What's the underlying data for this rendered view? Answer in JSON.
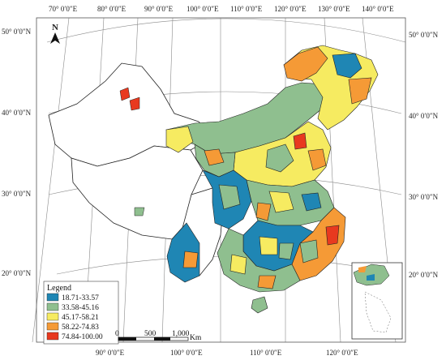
{
  "map": {
    "lon_labels_top": [
      "70° 0′0″E",
      "80° 0′0″E",
      "90° 0′0″E",
      "100° 0′0″E",
      "110° 0′0″E",
      "120° 0′0″E",
      "130° 0′0″E",
      "140° 0′0″E"
    ],
    "lon_labels_bottom": [
      "90° 0′0″E",
      "100° 0′0″E",
      "110° 0′0″E",
      "120° 0′0″E"
    ],
    "lat_labels_left": [
      "50° 0′0″N",
      "40° 0′0″N",
      "30° 0′0″N",
      "20° 0′0″N"
    ],
    "lat_labels_right": [
      "50° 0′0″N",
      "40° 0′0″N",
      "30° 0′0″N",
      "20° 0′0″N"
    ],
    "north_arrow": "N",
    "legend": {
      "title": "Legend",
      "items": [
        {
          "label": "18.71-33.57",
          "color": "#1f86b4"
        },
        {
          "label": "33.58-45.16",
          "color": "#8fbf8f"
        },
        {
          "label": "45.17-58.21",
          "color": "#f6eb61"
        },
        {
          "label": "58.22-74.83",
          "color": "#f59a36"
        },
        {
          "label": "74.84-100.00",
          "color": "#e8391f"
        }
      ]
    },
    "scale_bar": {
      "labels": [
        "0",
        "500",
        "1,000"
      ],
      "unit": "Km"
    }
  }
}
